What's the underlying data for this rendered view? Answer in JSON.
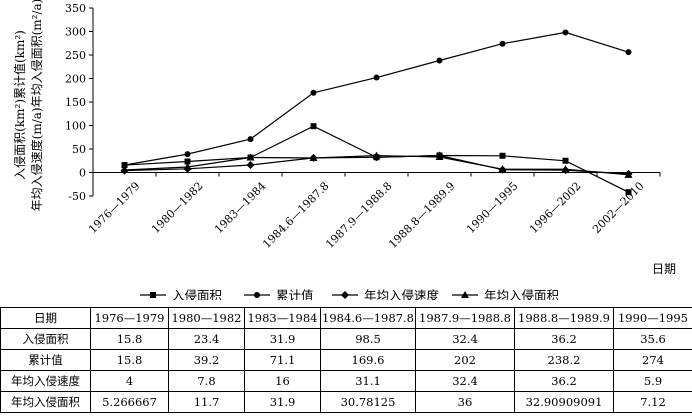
{
  "chart_data": {
    "type": "line",
    "ylabel": "入侵面积(km²)累计值(km²)年均入侵速度(m/a)年均入侵面积(m²/a)",
    "ylabel_lines": [
      "入侵面积(km²)累计值(km²)",
      "年均入侵速度(m/a)年均入侵面积(m²/a)"
    ],
    "xlabel": "日期",
    "ylim": [
      -50,
      350
    ],
    "yticks": [
      -50,
      0,
      50,
      100,
      150,
      200,
      250,
      300,
      350
    ],
    "grid": false,
    "legend_position": "bottom",
    "categories": [
      "1976—1979",
      "1980—1982",
      "1983—1984",
      "1984.6—1987.8",
      "1987.9—1988.8",
      "1988.8—1989.9",
      "1990—1995",
      "1996—2002",
      "2002—2010"
    ],
    "series": [
      {
        "name": "入侵面积",
        "marker": "square",
        "values": [
          15.8,
          23.4,
          31.9,
          98.5,
          32.4,
          36.2,
          35.6,
          25,
          -42
        ]
      },
      {
        "name": "累计值",
        "marker": "circle",
        "values": [
          15.8,
          39.2,
          71.1,
          169.6,
          202,
          238.2,
          274,
          298,
          256
        ]
      },
      {
        "name": "年均入侵速度",
        "marker": "diamond",
        "values": [
          4,
          7.8,
          16,
          31.1,
          32.4,
          36.2,
          5.9,
          5,
          -3
        ]
      },
      {
        "name": "年均入侵面积",
        "marker": "triangle",
        "values": [
          5.266667,
          11.7,
          31.9,
          30.78125,
          36,
          32.90909091,
          7.12,
          7,
          -5
        ]
      }
    ]
  },
  "table": {
    "header_label": "日期",
    "columns": [
      "1976—1979",
      "1980—1982",
      "1983—1984",
      "1984.6—1987.8",
      "1987.9—1988.8",
      "1988.8—1989.9",
      "1990—1995"
    ],
    "rows": [
      {
        "label": "入侵面积",
        "values": [
          "15.8",
          "23.4",
          "31.9",
          "98.5",
          "32.4",
          "36.2",
          "35.6"
        ]
      },
      {
        "label": "累计值",
        "values": [
          "15.8",
          "39.2",
          "71.1",
          "169.6",
          "202",
          "238.2",
          "274"
        ]
      },
      {
        "label": "年均入侵速度",
        "values": [
          "4",
          "7.8",
          "16",
          "31.1",
          "32.4",
          "36.2",
          "5.9"
        ]
      },
      {
        "label": "年均入侵面积",
        "values": [
          "5.266667",
          "11.7",
          "31.9",
          "30.78125",
          "36",
          "32.90909091",
          "7.12"
        ]
      }
    ]
  }
}
